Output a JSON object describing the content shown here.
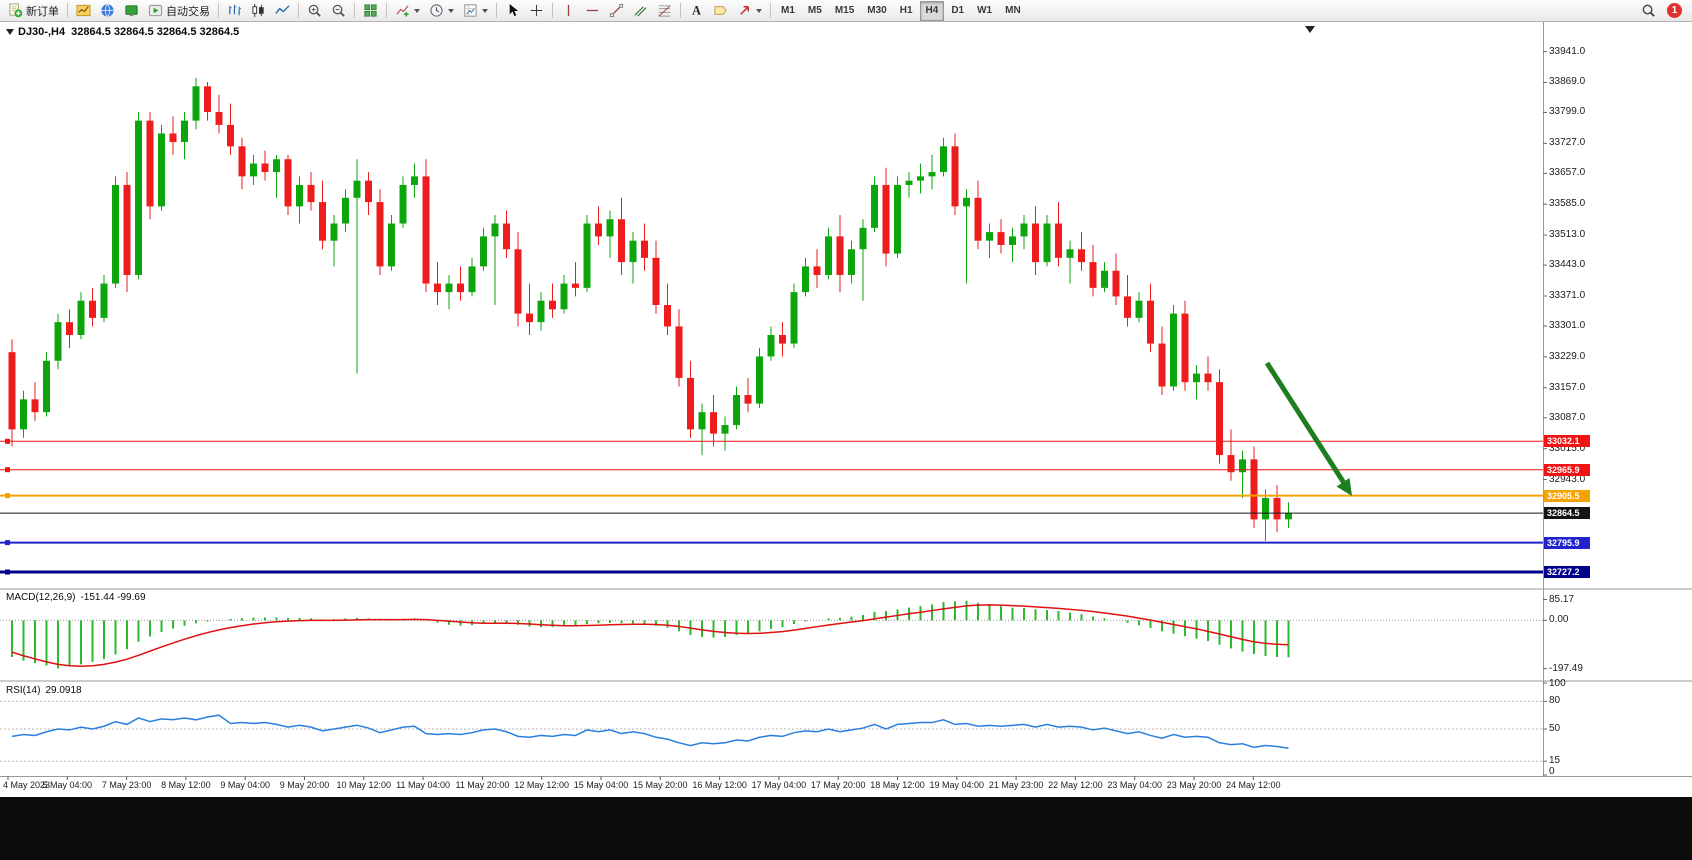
{
  "toolbar": {
    "new_order_label": "新订单",
    "autotrade_label": "自动交易",
    "timeframes": [
      "M1",
      "M5",
      "M15",
      "M30",
      "H1",
      "H4",
      "D1",
      "W1",
      "MN"
    ],
    "active_timeframe": "H4",
    "notification_count": "1",
    "icons": {
      "new_order": "doc-plus-icon",
      "new_chart": "chart-page-icon",
      "community": "globe-icon",
      "terminal": "monitor-icon",
      "autotrade": "play-icon",
      "bars_chart": "ohlc-bars-icon",
      "candlestick": "candlestick-icon",
      "line_chart": "polyline-icon",
      "zoom_in": "magnifier-plus-icon",
      "zoom_out": "magnifier-minus-icon",
      "tile_windows": "grid-icon",
      "indicators": "chart-plus-icon",
      "periods": "clock-icon",
      "templates": "chart-template-icon",
      "cursor": "pointer-icon",
      "crosshair": "cross-icon",
      "vertical_line": "vertical-line-icon",
      "horizontal_line": "horizontal-line-icon",
      "trendline": "diagonal-line-icon",
      "channel": "parallel-lines-icon",
      "fibonacci": "fibo-grid-icon",
      "text": "letter-a-icon",
      "label": "tag-icon",
      "arrows": "arrow-icon",
      "search": "magnifier-icon",
      "notification": "red-circle-badge"
    }
  },
  "chart": {
    "symbol_title": "DJ30-,H4",
    "ohlc_text": "32864.5 32864.5 32864.5 32864.5",
    "current_price": "32864.5",
    "colors": {
      "up": "#0ca50c",
      "down": "#ee1c1c",
      "axis_text": "#1c1c1c",
      "arrow": "#1e7d1e"
    },
    "price_axis_labels": [
      "33941.0",
      "33869.0",
      "33799.0",
      "33727.0",
      "33657.0",
      "33585.0",
      "33513.0",
      "33443.0",
      "33371.0",
      "33301.0",
      "33229.0",
      "33157.0",
      "33087.0",
      "33015.0",
      "32943.0"
    ],
    "hlines": [
      {
        "price": 33032.1,
        "label": "33032.1",
        "color": "#f01414",
        "thickness": 1,
        "current": false
      },
      {
        "price": 32965.9,
        "label": "32965.9",
        "color": "#f01414",
        "thickness": 1,
        "current": false
      },
      {
        "price": 32905.5,
        "label": "32905.5",
        "color": "#f5a300",
        "thickness": 2,
        "current": false
      },
      {
        "price": 32864.5,
        "label": "32864.5",
        "color": "#141414",
        "thickness": 1,
        "current": true
      },
      {
        "price": 32795.9,
        "label": "32795.9",
        "color": "#2222cc",
        "thickness": 2,
        "current": false
      },
      {
        "price": 32727.2,
        "label": "32727.2",
        "color": "#00008b",
        "thickness": 3,
        "current": false
      }
    ],
    "time_axis_labels": [
      "4 May 2023",
      "5 May 04:00",
      "7 May 23:00",
      "8 May 12:00",
      "9 May 04:00",
      "9 May 20:00",
      "10 May 12:00",
      "11 May 04:00",
      "11 May 20:00",
      "12 May 12:00",
      "15 May 04:00",
      "15 May 20:00",
      "16 May 12:00",
      "17 May 04:00",
      "17 May 20:00",
      "18 May 12:00",
      "19 May 04:00",
      "21 May 23:00",
      "22 May 12:00",
      "23 May 04:00",
      "23 May 20:00",
      "24 May 12:00"
    ],
    "candles": [
      [
        33240,
        33270,
        33020,
        33060
      ],
      [
        33060,
        33150,
        33040,
        33130
      ],
      [
        33130,
        33170,
        33080,
        33100
      ],
      [
        33100,
        33240,
        33090,
        33220
      ],
      [
        33220,
        33330,
        33200,
        33310
      ],
      [
        33310,
        33340,
        33250,
        33280
      ],
      [
        33280,
        33380,
        33270,
        33360
      ],
      [
        33360,
        33390,
        33300,
        33320
      ],
      [
        33320,
        33420,
        33310,
        33400
      ],
      [
        33400,
        33650,
        33390,
        33630
      ],
      [
        33630,
        33660,
        33380,
        33420
      ],
      [
        33420,
        33800,
        33410,
        33780
      ],
      [
        33780,
        33800,
        33550,
        33580
      ],
      [
        33580,
        33770,
        33570,
        33750
      ],
      [
        33750,
        33790,
        33700,
        33730
      ],
      [
        33730,
        33800,
        33690,
        33780
      ],
      [
        33780,
        33880,
        33760,
        33860
      ],
      [
        33860,
        33870,
        33780,
        33800
      ],
      [
        33800,
        33840,
        33750,
        33770
      ],
      [
        33770,
        33820,
        33700,
        33720
      ],
      [
        33720,
        33740,
        33620,
        33650
      ],
      [
        33650,
        33700,
        33630,
        33680
      ],
      [
        33680,
        33710,
        33640,
        33660
      ],
      [
        33660,
        33700,
        33600,
        33690
      ],
      [
        33690,
        33700,
        33560,
        33580
      ],
      [
        33580,
        33650,
        33540,
        33630
      ],
      [
        33630,
        33660,
        33570,
        33590
      ],
      [
        33590,
        33640,
        33480,
        33500
      ],
      [
        33500,
        33560,
        33440,
        33540
      ],
      [
        33540,
        33620,
        33520,
        33600
      ],
      [
        33600,
        33690,
        33190,
        33640
      ],
      [
        33640,
        33660,
        33560,
        33590
      ],
      [
        33590,
        33620,
        33420,
        33440
      ],
      [
        33440,
        33560,
        33430,
        33540
      ],
      [
        33540,
        33650,
        33530,
        33630
      ],
      [
        33630,
        33680,
        33600,
        33650
      ],
      [
        33650,
        33690,
        33380,
        33400
      ],
      [
        33400,
        33450,
        33350,
        33380
      ],
      [
        33380,
        33420,
        33340,
        33400
      ],
      [
        33400,
        33440,
        33360,
        33380
      ],
      [
        33380,
        33460,
        33370,
        33440
      ],
      [
        33440,
        33530,
        33430,
        33510
      ],
      [
        33510,
        33560,
        33350,
        33540
      ],
      [
        33540,
        33570,
        33460,
        33480
      ],
      [
        33480,
        33520,
        33300,
        33330
      ],
      [
        33330,
        33400,
        33280,
        33310
      ],
      [
        33310,
        33380,
        33290,
        33360
      ],
      [
        33360,
        33400,
        33320,
        33340
      ],
      [
        33340,
        33420,
        33330,
        33400
      ],
      [
        33400,
        33450,
        33370,
        33390
      ],
      [
        33390,
        33560,
        33380,
        33540
      ],
      [
        33540,
        33580,
        33490,
        33510
      ],
      [
        33510,
        33570,
        33460,
        33550
      ],
      [
        33550,
        33600,
        33420,
        33450
      ],
      [
        33450,
        33520,
        33400,
        33500
      ],
      [
        33500,
        33540,
        33430,
        33460
      ],
      [
        33460,
        33500,
        33330,
        33350
      ],
      [
        33350,
        33400,
        33280,
        33300
      ],
      [
        33300,
        33340,
        33160,
        33180
      ],
      [
        33180,
        33220,
        33040,
        33060
      ],
      [
        33060,
        33120,
        33000,
        33100
      ],
      [
        33100,
        33140,
        33020,
        33050
      ],
      [
        33050,
        33090,
        33010,
        33070
      ],
      [
        33070,
        33160,
        33060,
        33140
      ],
      [
        33140,
        33180,
        33100,
        33120
      ],
      [
        33120,
        33250,
        33110,
        33230
      ],
      [
        33230,
        33300,
        33220,
        33280
      ],
      [
        33280,
        33310,
        33230,
        33260
      ],
      [
        33260,
        33400,
        33250,
        33380
      ],
      [
        33380,
        33460,
        33370,
        33440
      ],
      [
        33440,
        33480,
        33390,
        33420
      ],
      [
        33420,
        33530,
        33410,
        33510
      ],
      [
        33510,
        33560,
        33380,
        33420
      ],
      [
        33420,
        33500,
        33400,
        33480
      ],
      [
        33480,
        33550,
        33360,
        33530
      ],
      [
        33530,
        33650,
        33520,
        33630
      ],
      [
        33630,
        33670,
        33440,
        33470
      ],
      [
        33470,
        33650,
        33460,
        33630
      ],
      [
        33630,
        33660,
        33600,
        33640
      ],
      [
        33640,
        33680,
        33610,
        33650
      ],
      [
        33650,
        33700,
        33620,
        33660
      ],
      [
        33660,
        33740,
        33650,
        33720
      ],
      [
        33720,
        33750,
        33560,
        33580
      ],
      [
        33580,
        33620,
        33400,
        33600
      ],
      [
        33600,
        33640,
        33480,
        33500
      ],
      [
        33500,
        33540,
        33460,
        33520
      ],
      [
        33520,
        33550,
        33470,
        33490
      ],
      [
        33490,
        33530,
        33450,
        33510
      ],
      [
        33510,
        33560,
        33480,
        33540
      ],
      [
        33540,
        33580,
        33420,
        33450
      ],
      [
        33450,
        33560,
        33440,
        33540
      ],
      [
        33540,
        33590,
        33440,
        33460
      ],
      [
        33460,
        33500,
        33400,
        33480
      ],
      [
        33480,
        33520,
        33430,
        33450
      ],
      [
        33450,
        33490,
        33370,
        33390
      ],
      [
        33390,
        33450,
        33380,
        33430
      ],
      [
        33430,
        33470,
        33350,
        33370
      ],
      [
        33370,
        33420,
        33300,
        33320
      ],
      [
        33320,
        33380,
        33310,
        33360
      ],
      [
        33360,
        33400,
        33240,
        33260
      ],
      [
        33260,
        33300,
        33140,
        33160
      ],
      [
        33160,
        33350,
        33150,
        33330
      ],
      [
        33330,
        33360,
        33150,
        33170
      ],
      [
        33170,
        33210,
        33130,
        33190
      ],
      [
        33190,
        33230,
        33150,
        33170
      ],
      [
        33170,
        33200,
        32980,
        33000
      ],
      [
        33000,
        33060,
        32940,
        32960
      ],
      [
        32960,
        33010,
        32900,
        32990
      ],
      [
        32990,
        33020,
        32830,
        32850
      ],
      [
        32850,
        32920,
        32800,
        32900
      ],
      [
        32900,
        32930,
        32820,
        32850
      ],
      [
        32850,
        32890,
        32830,
        32864.5
      ]
    ]
  },
  "macd": {
    "title": "MACD(12,26,9)",
    "values_text": "-151.44 -99.69",
    "axis_labels": [
      {
        "value": 85.17,
        "text": "85.17"
      },
      {
        "value": 0,
        "text": "0.00"
      },
      {
        "value": -197.49,
        "text": "-197.49"
      }
    ],
    "colors": {
      "histogram": "#2db82d",
      "signal": "#e01010"
    },
    "histogram": [
      -150,
      -165,
      -175,
      -185,
      -197,
      -188,
      -180,
      -170,
      -158,
      -140,
      -118,
      -88,
      -66,
      -48,
      -34,
      -22,
      -12,
      -5,
      2,
      6,
      9,
      11,
      12,
      12,
      10,
      10,
      8,
      4,
      5,
      8,
      10,
      8,
      5,
      3,
      5,
      8,
      0,
      -10,
      -18,
      -22,
      -20,
      -15,
      -10,
      -10,
      -18,
      -25,
      -28,
      -28,
      -25,
      -22,
      -15,
      -12,
      -10,
      -12,
      -12,
      -15,
      -22,
      -30,
      -45,
      -60,
      -68,
      -70,
      -68,
      -60,
      -55,
      -45,
      -35,
      -28,
      -15,
      -5,
      0,
      8,
      10,
      15,
      22,
      35,
      38,
      45,
      52,
      58,
      65,
      75,
      78,
      80,
      72,
      65,
      58,
      52,
      50,
      45,
      42,
      38,
      32,
      25,
      15,
      8,
      0,
      -10,
      -20,
      -32,
      -45,
      -55,
      -65,
      -75,
      -85,
      -100,
      -115,
      -128,
      -138,
      -146,
      -150,
      -151.44
    ],
    "signal": [
      -130,
      -145,
      -158,
      -170,
      -180,
      -186,
      -188,
      -186,
      -180,
      -171,
      -159,
      -143,
      -126,
      -109,
      -93,
      -77,
      -63,
      -50,
      -39,
      -30,
      -22,
      -15,
      -10,
      -6,
      -3,
      -1,
      0,
      0,
      0,
      1,
      2,
      3,
      3,
      3,
      3,
      4,
      3,
      0,
      -3,
      -7,
      -10,
      -12,
      -12,
      -12,
      -13,
      -15,
      -18,
      -20,
      -22,
      -22,
      -21,
      -20,
      -18,
      -17,
      -16,
      -16,
      -17,
      -20,
      -25,
      -32,
      -39,
      -45,
      -50,
      -53,
      -54,
      -53,
      -50,
      -46,
      -40,
      -33,
      -26,
      -19,
      -13,
      -7,
      -1,
      6,
      13,
      20,
      27,
      33,
      40,
      47,
      53,
      59,
      62,
      63,
      62,
      60,
      58,
      55,
      52,
      49,
      45,
      41,
      36,
      30,
      24,
      17,
      9,
      1,
      -8,
      -17,
      -26,
      -35,
      -45,
      -56,
      -67,
      -78,
      -88,
      -94,
      -98,
      -99.69
    ]
  },
  "rsi": {
    "title": "RSI(14)",
    "value_text": "29.0918",
    "axis_labels": [
      {
        "value": 100,
        "text": "100"
      },
      {
        "value": 80,
        "text": "80"
      },
      {
        "value": 50,
        "text": "50"
      },
      {
        "value": 15,
        "text": "15"
      },
      {
        "value": 0,
        "text": "0"
      }
    ],
    "levels": [
      80,
      50,
      15
    ],
    "color": "#2a7fde",
    "line": [
      42,
      44,
      43,
      47,
      50,
      49,
      52,
      50,
      53,
      58,
      55,
      62,
      58,
      61,
      60,
      62,
      60,
      63,
      65,
      56,
      57,
      56,
      57,
      55,
      52,
      54,
      52,
      48,
      50,
      52,
      54,
      51,
      46,
      49,
      52,
      53,
      45,
      44,
      45,
      44,
      46,
      49,
      50,
      47,
      42,
      41,
      43,
      42,
      44,
      43,
      49,
      47,
      49,
      45,
      47,
      45,
      41,
      39,
      35,
      32,
      35,
      34,
      35,
      38,
      37,
      41,
      43,
      42,
      46,
      48,
      47,
      50,
      47,
      49,
      51,
      55,
      50,
      55,
      56,
      57,
      57,
      60,
      55,
      56,
      53,
      54,
      53,
      54,
      55,
      52,
      55,
      52,
      53,
      52,
      49,
      51,
      48,
      45,
      47,
      43,
      40,
      44,
      41,
      42,
      41,
      35,
      33,
      34,
      30,
      32,
      31,
      29.09
    ]
  }
}
